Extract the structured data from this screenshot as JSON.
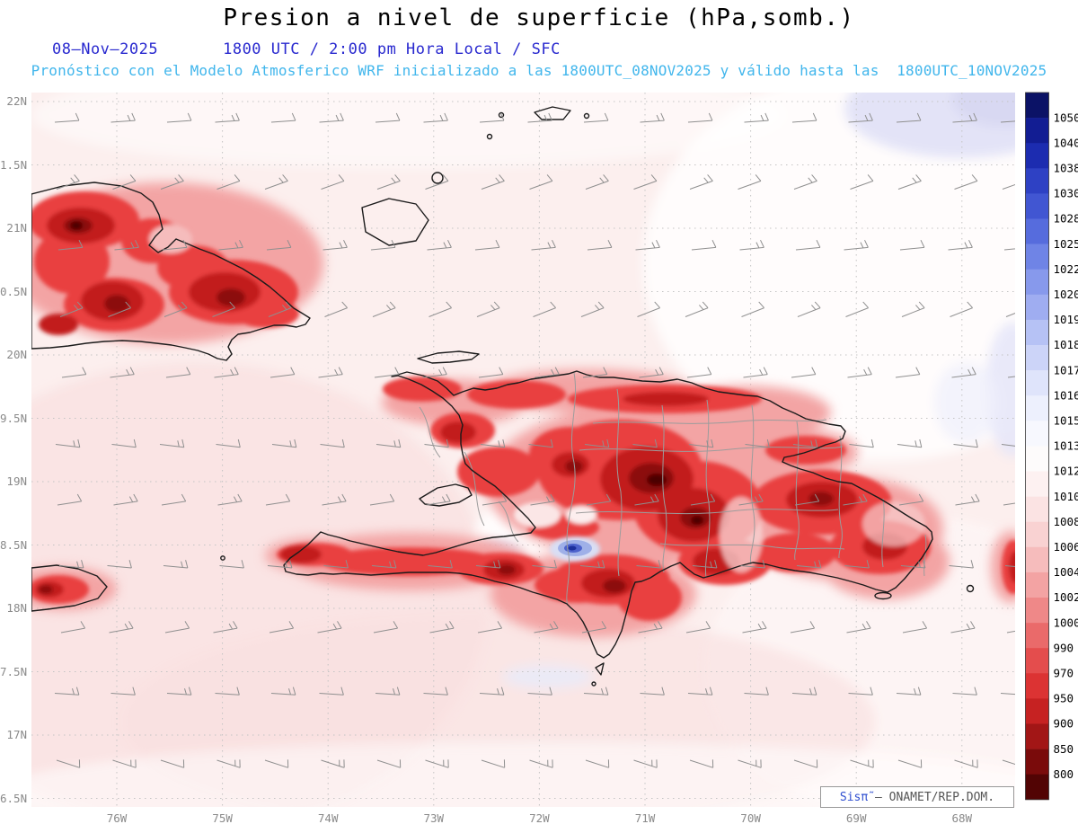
{
  "title": "Presion a nivel de superficie (hPa,somb.)",
  "header": {
    "date": "08–Nov–2025",
    "time": "1800 UTC / 2:00 pm Hora Local / SFC",
    "forecast": "Pronóstico con el Modelo Atmosferico WRF inicializado a las 1800UTC_08NOV2025 y válido hasta las  1800UTC_10NOV2025"
  },
  "credit": {
    "brand": "Sisπ̃ ",
    "org": "– ONAMET/REP.DOM."
  },
  "chart_data": {
    "type": "heatmap",
    "title": "Presion a nivel de superficie (hPa,somb.)",
    "variable": "Surface pressure (shaded) with wind barbs",
    "units": "hPa",
    "model": "WRF",
    "init_time": "1800UTC_08NOV2025",
    "valid_until": "1800UTC_10NOV2025",
    "region": "Eastern Cuba, Hispaniola (Haiti / Dominican Republic), Jamaica tip, SE Bahamas",
    "lat_ticks": [
      "22N",
      "1.5N",
      "21N",
      "0.5N",
      "20N",
      "9.5N",
      "19N",
      "8.5N",
      "18N",
      "7.5N",
      "17N",
      "6.5N"
    ],
    "lon_ticks": [
      "76W",
      "75W",
      "74W",
      "73W",
      "72W",
      "71W",
      "70W",
      "69W",
      "68W"
    ],
    "colorbar": {
      "labels": [
        "1050",
        "1040",
        "1038",
        "1030",
        "1028",
        "1025",
        "1022",
        "1020",
        "1019",
        "1018",
        "1017",
        "1016",
        "1015",
        "1013",
        "1012",
        "1010",
        "1008",
        "1006",
        "1004",
        "1002",
        "1000",
        "990",
        "970",
        "950",
        "900",
        "850",
        "800"
      ],
      "colors": [
        "#0b1266",
        "#121d93",
        "#1c2cb0",
        "#2e41c4",
        "#4156d2",
        "#566cdd",
        "#6f84e6",
        "#8799ec",
        "#9fadf1",
        "#b6c2f5",
        "#ccd4f8",
        "#dfe4fb",
        "#edf0fd",
        "#f7f8fe",
        "#fdfbfb",
        "#fdf1f1",
        "#fbe3e3",
        "#f9d2d2",
        "#f6bcbc",
        "#f3a3a3",
        "#ef8888",
        "#ea6a6a",
        "#e44d4d",
        "#dc3333",
        "#c62222",
        "#a21616",
        "#7a0b0b",
        "#520404"
      ]
    },
    "wind_barbs": {
      "color": "#8f8f8f",
      "cols": 19,
      "rows": 11,
      "direction": "easterly trade winds"
    },
    "field_notes": "Low station pressure (reds, ~950–1006 hPa) over the mountainous terrain of eastern Cuba, Hispaniola and Jamaica; pale pink ~1008–1012 hPa over surrounding ocean; small blue high-pressure spot (>=1016 hPa) at the Lake Enriquillo depression; pale bluish patches near the NE corner of the domain."
  }
}
